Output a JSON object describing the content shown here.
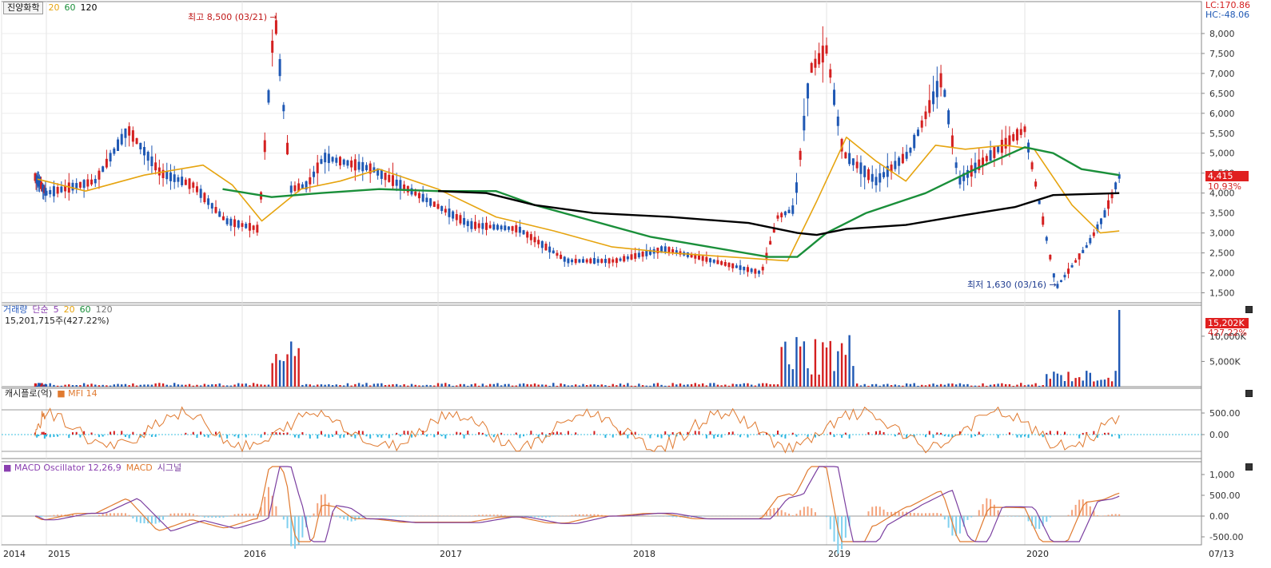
{
  "header": {
    "stock_name": "진양화학",
    "ma_labels": [
      {
        "text": "20",
        "color": "#e6a40f"
      },
      {
        "text": "60",
        "color": "#1a8f3a"
      },
      {
        "text": "120",
        "color": "#000000"
      }
    ],
    "lc": "LC:170.86",
    "hc": "HC:-48.06"
  },
  "annotations": {
    "high": "최고 8,500 (03/21)",
    "low": "최저 1,630 (03/16)"
  },
  "current": {
    "price": "4,415",
    "change_pct": "10.93%",
    "volume_tag": "15,202K",
    "volume_pct": "427.22%"
  },
  "volume_panel": {
    "legend": [
      "거래량",
      "단순",
      "5",
      "20",
      "60",
      "120"
    ],
    "value_line": "15,201,715주(427.22%)"
  },
  "mfi_panel": {
    "legend": [
      "캐시플로(억)",
      "MFI 14"
    ]
  },
  "macd_panel": {
    "legend": [
      "MACD Oscillator 12,26,9",
      "MACD",
      "시그널"
    ]
  },
  "colors": {
    "up": "#d42020",
    "down": "#1f58b4",
    "ma20": "#e6a40f",
    "ma60": "#1a8f3a",
    "ma120": "#000000",
    "mfi": "#e07a30",
    "macd": "#e07a30",
    "signal": "#7b3fa0"
  },
  "date_axis": [
    "2014",
    "2015",
    "2016",
    "2017",
    "2018",
    "2019",
    "2020",
    "07/13"
  ],
  "chart_data": {
    "type": "candlestick",
    "title": "진양화학",
    "price_axis": {
      "ticks": [
        "8,000",
        "7,500",
        "7,000",
        "6,500",
        "6,000",
        "5,500",
        "5,000",
        "4,500",
        "4,000",
        "3,500",
        "3,000",
        "2,500",
        "2,000",
        "1,500"
      ],
      "ylim": [
        1250,
        8800
      ]
    },
    "price_points": [
      {
        "date": "2014-10",
        "close": 4400
      },
      {
        "date": "2015-01",
        "close": 4000
      },
      {
        "date": "2015-04",
        "close": 4300
      },
      {
        "date": "2015-06",
        "close": 5600
      },
      {
        "date": "2015-08",
        "close": 4500
      },
      {
        "date": "2015-10",
        "close": 4200
      },
      {
        "date": "2015-12",
        "close": 3300
      },
      {
        "date": "2016-02",
        "close": 3100
      },
      {
        "date": "2016-03",
        "close": 8500
      },
      {
        "date": "2016-04",
        "close": 4100
      },
      {
        "date": "2016-05",
        "close": 4200
      },
      {
        "date": "2016-06",
        "close": 4900
      },
      {
        "date": "2016-09",
        "close": 4600
      },
      {
        "date": "2016-12",
        "close": 3900
      },
      {
        "date": "2017-03",
        "close": 3200
      },
      {
        "date": "2017-06",
        "close": 3100
      },
      {
        "date": "2017-09",
        "close": 2300
      },
      {
        "date": "2017-12",
        "close": 2300
      },
      {
        "date": "2018-03",
        "close": 2600
      },
      {
        "date": "2018-06",
        "close": 2300
      },
      {
        "date": "2018-09",
        "close": 2000
      },
      {
        "date": "2018-10",
        "close": 3400
      },
      {
        "date": "2018-11",
        "close": 3600
      },
      {
        "date": "2018-12",
        "close": 7100
      },
      {
        "date": "2019-01",
        "close": 7600
      },
      {
        "date": "2019-02",
        "close": 5000
      },
      {
        "date": "2019-04",
        "close": 4300
      },
      {
        "date": "2019-06",
        "close": 5000
      },
      {
        "date": "2019-08",
        "close": 6900
      },
      {
        "date": "2019-09",
        "close": 4300
      },
      {
        "date": "2019-12",
        "close": 5300
      },
      {
        "date": "2020-01",
        "close": 5600
      },
      {
        "date": "2020-03",
        "close": 1630
      },
      {
        "date": "2020-05",
        "close": 2700
      },
      {
        "date": "2020-06",
        "close": 3400
      },
      {
        "date": "2020-07",
        "close": 4415
      }
    ],
    "ma20": [
      [
        2014.8,
        4350
      ],
      [
        2015.2,
        4050
      ],
      [
        2015.5,
        4450
      ],
      [
        2015.8,
        4700
      ],
      [
        2015.95,
        4200
      ],
      [
        2016.1,
        3300
      ],
      [
        2016.3,
        4100
      ],
      [
        2016.5,
        4300
      ],
      [
        2016.7,
        4600
      ],
      [
        2017.0,
        4100
      ],
      [
        2017.3,
        3400
      ],
      [
        2017.6,
        3050
      ],
      [
        2017.9,
        2650
      ],
      [
        2018.2,
        2500
      ],
      [
        2018.5,
        2400
      ],
      [
        2018.8,
        2300
      ],
      [
        2018.95,
        3800
      ],
      [
        2019.1,
        5400
      ],
      [
        2019.25,
        4800
      ],
      [
        2019.4,
        4300
      ],
      [
        2019.55,
        5200
      ],
      [
        2019.7,
        5100
      ],
      [
        2019.9,
        5200
      ],
      [
        2020.05,
        5100
      ],
      [
        2020.25,
        3700
      ],
      [
        2020.4,
        3000
      ],
      [
        2020.5,
        3050
      ]
    ],
    "ma60": [
      [
        2015.9,
        4100
      ],
      [
        2016.15,
        3900
      ],
      [
        2016.4,
        4000
      ],
      [
        2016.7,
        4100
      ],
      [
        2017.0,
        4050
      ],
      [
        2017.3,
        4050
      ],
      [
        2017.5,
        3700
      ],
      [
        2017.8,
        3300
      ],
      [
        2018.1,
        2900
      ],
      [
        2018.4,
        2650
      ],
      [
        2018.7,
        2400
      ],
      [
        2018.85,
        2400
      ],
      [
        2019.0,
        3000
      ],
      [
        2019.2,
        3500
      ],
      [
        2019.5,
        4000
      ],
      [
        2019.75,
        4600
      ],
      [
        2020.0,
        5150
      ],
      [
        2020.15,
        5000
      ],
      [
        2020.3,
        4600
      ],
      [
        2020.5,
        4450
      ]
    ],
    "ma120": [
      [
        2017.0,
        4050
      ],
      [
        2017.25,
        4000
      ],
      [
        2017.5,
        3700
      ],
      [
        2017.8,
        3500
      ],
      [
        2018.2,
        3400
      ],
      [
        2018.6,
        3250
      ],
      [
        2018.85,
        3000
      ],
      [
        2018.95,
        2950
      ],
      [
        2019.1,
        3100
      ],
      [
        2019.4,
        3200
      ],
      [
        2019.7,
        3450
      ],
      [
        2019.95,
        3650
      ],
      [
        2020.15,
        3950
      ],
      [
        2020.5,
        4000
      ]
    ],
    "volume_axis": {
      "ticks": [
        "10,000K",
        "5,000K"
      ]
    },
    "mfi_axis": {
      "ticks": [
        "500.00",
        "0.00"
      ]
    },
    "macd_axis": {
      "ticks": [
        "1,000",
        "500.00",
        "0.00",
        "-500.00"
      ]
    }
  }
}
